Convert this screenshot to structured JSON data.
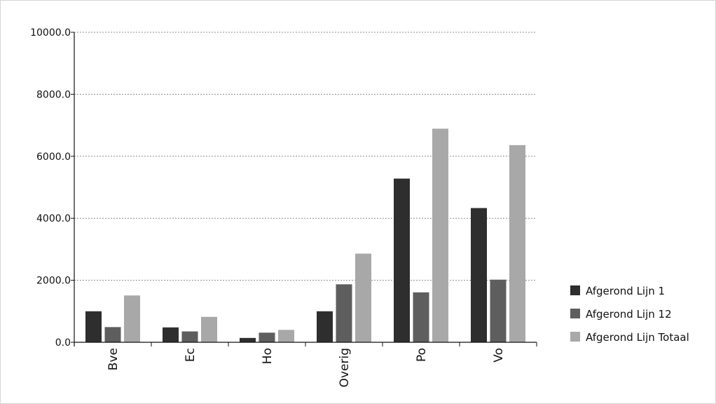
{
  "chart_data": {
    "type": "bar",
    "categories": [
      "Bve",
      "Ec",
      "Ho",
      "Overig",
      "Po",
      "Vo"
    ],
    "series": [
      {
        "name": "Afgerond Lijn 1",
        "color": "#2e2e2e",
        "values": [
          1000,
          480,
          140,
          1000,
          5280,
          4330
        ]
      },
      {
        "name": "Afgerond Lijn 12",
        "color": "#5e5e5e",
        "values": [
          490,
          350,
          310,
          1870,
          1610,
          2020
        ]
      },
      {
        "name": "Afgerond Lijn Totaal",
        "color": "#a8a8a8",
        "values": [
          1510,
          820,
          400,
          2860,
          6890,
          6360
        ]
      }
    ],
    "ylim": [
      0,
      10000
    ],
    "yticks": [
      "0.0",
      "2000.0",
      "4000.0",
      "6000.0",
      "8000.0",
      "10000.0"
    ],
    "ytick_values": [
      0,
      2000,
      4000,
      6000,
      8000,
      10000
    ],
    "grid": "horizontal-dotted",
    "legend_position": "right"
  }
}
